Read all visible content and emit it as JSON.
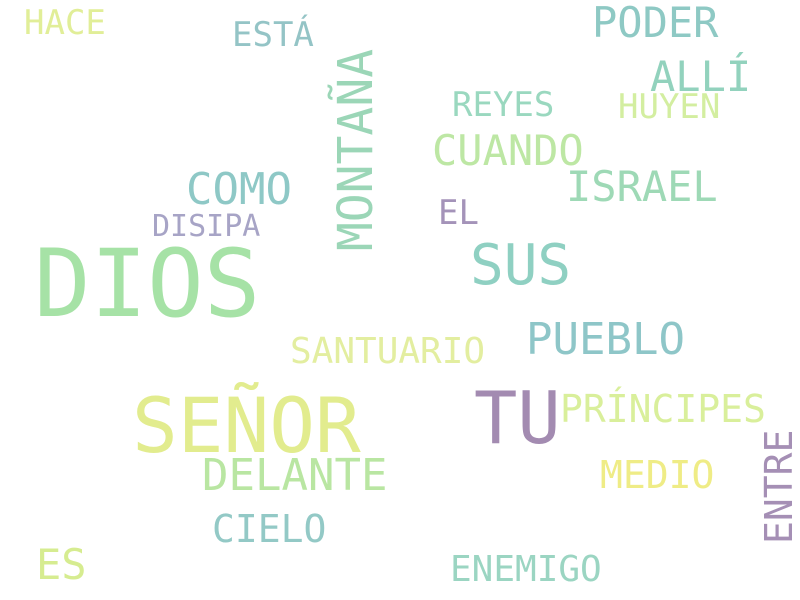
{
  "words": {
    "dios": {
      "text": "DIOS",
      "color": "#a6e2a6"
    },
    "senor": {
      "text": "SEÑOR",
      "color": "#e2ec8e"
    },
    "tu": {
      "text": "TU",
      "color": "#a38bb1"
    },
    "montana": {
      "text": "MONTAÑA",
      "color": "#9bd6b7"
    },
    "sus": {
      "text": "SUS",
      "color": "#8fd0c2"
    },
    "poder": {
      "text": "PODER",
      "color": "#8ec9c4"
    },
    "alli": {
      "text": "ALLÍ",
      "color": "#92d2bd"
    },
    "cuando": {
      "text": "CUANDO",
      "color": "#bde7a4"
    },
    "israel": {
      "text": "ISRAEL",
      "color": "#9ed9b6"
    },
    "como": {
      "text": "COMO",
      "color": "#8ec8c6"
    },
    "pueblo": {
      "text": "PUEBLO",
      "color": "#8ec6c8"
    },
    "delante": {
      "text": "DELANTE",
      "color": "#b9e6a2"
    },
    "principes": {
      "text": "PRÍNCIPES",
      "color": "#d9ef9b"
    },
    "santuario": {
      "text": "SANTUARIO",
      "color": "#e3eea0"
    },
    "medio": {
      "text": "MEDIO",
      "color": "#efec86"
    },
    "entre": {
      "text": "ENTRE",
      "color": "#a58fb5"
    },
    "cielo": {
      "text": "CIELO",
      "color": "#93c9c6"
    },
    "enemigo": {
      "text": "ENEMIGO",
      "color": "#9bd5c2"
    },
    "es": {
      "text": "ES",
      "color": "#d6ec90"
    },
    "hace": {
      "text": "HACE",
      "color": "#e1ee98"
    },
    "esta": {
      "text": "ESTÁ",
      "color": "#94c4c6"
    },
    "reyes": {
      "text": "REYES",
      "color": "#9ad8bf"
    },
    "huyen": {
      "text": "HUYEN",
      "color": "#d3eea0"
    },
    "el": {
      "text": "EL",
      "color": "#a493b9"
    },
    "disipa": {
      "text": "DISIPA",
      "color": "#a7a4c6"
    }
  }
}
